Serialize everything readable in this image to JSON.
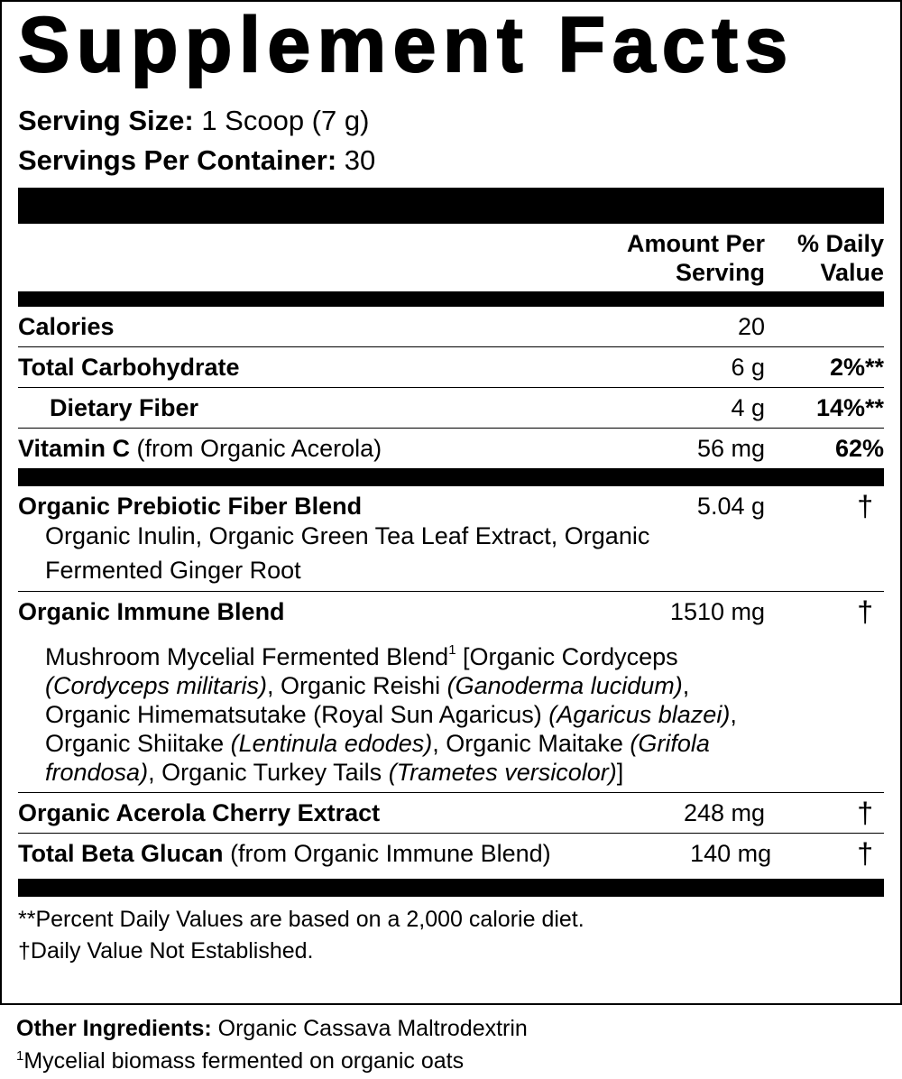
{
  "title": "Supplement Facts",
  "serving_size": {
    "label": "Serving Size:",
    "value": "1 Scoop (7 g)"
  },
  "servings_per_container": {
    "label": "Servings Per Container:",
    "value": "30"
  },
  "header": {
    "amount": [
      "Amount Per",
      "Serving"
    ],
    "daily_value": [
      "% Daily",
      "Value"
    ]
  },
  "nutrients": [
    {
      "name": "Calories",
      "amount": "20"
    },
    {
      "name": "Total Carbohydrate",
      "amount": "6 g",
      "daily_value": "2%**"
    },
    {
      "name": "Dietary Fiber",
      "amount": "4 g",
      "daily_value": "14%**",
      "indent": true
    },
    {
      "name": "Vitamin C",
      "note": "(from Organic Acerola)",
      "amount": "56 mg",
      "daily_value": "62%"
    }
  ],
  "blends": [
    {
      "name": "Organic Prebiotic Fiber Blend",
      "amount": "5.04 g",
      "daily_value": "†",
      "description": [
        [
          {
            "text": "Organic Inulin, Organic Green Tea Leaf Extract, Organic"
          }
        ],
        [
          {
            "text": "Fermented Ginger Root"
          }
        ]
      ]
    },
    {
      "name": "Organic Immune Blend",
      "amount": "1510 mg",
      "daily_value": "†",
      "description": [
        [
          {
            "text": "Mushroom Mycelial Fermented Blend"
          },
          {
            "text": "1",
            "style": "sup"
          },
          {
            "text": " [Organic Cordyceps"
          }
        ],
        [
          {
            "text": "(Cordyceps militaris)",
            "style": "italic"
          },
          {
            "text": ", Organic Reishi "
          },
          {
            "text": "(Ganoderma lucidum)",
            "style": "italic"
          },
          {
            "text": ","
          }
        ],
        [
          {
            "text": "Organic Himematsutake (Royal Sun Agaricus) "
          },
          {
            "text": "(Agaricus blazei)",
            "style": "italic"
          },
          {
            "text": ","
          }
        ],
        [
          {
            "text": "Organic Shiitake "
          },
          {
            "text": "(Lentinula edodes)",
            "style": "italic"
          },
          {
            "text": ", Organic Maitake "
          },
          {
            "text": "(Grifola",
            "style": "italic"
          }
        ],
        [
          {
            "text": "frondosa)",
            "style": "italic"
          },
          {
            "text": ", Organic Turkey Tails "
          },
          {
            "text": "(Trametes versicolor)",
            "style": "italic"
          },
          {
            "text": "]"
          }
        ]
      ]
    },
    {
      "name": "Organic Acerola Cherry Extract",
      "amount": "248 mg",
      "daily_value": "†"
    },
    {
      "name": "Total Beta Glucan",
      "note": "(from Organic Immune Blend)",
      "amount": "140 mg",
      "daily_value": "†"
    }
  ],
  "footnotes": [
    "**Percent Daily Values are based on a 2,000 calorie diet.",
    "†Daily Value Not Established."
  ],
  "other_ingredients": {
    "label": "Other Ingredients:",
    "value": "Organic Cassava Maltrodextrin"
  },
  "ingredient_footnote": {
    "marker": "1",
    "text": "Mycelial biomass fermented on organic oats"
  }
}
